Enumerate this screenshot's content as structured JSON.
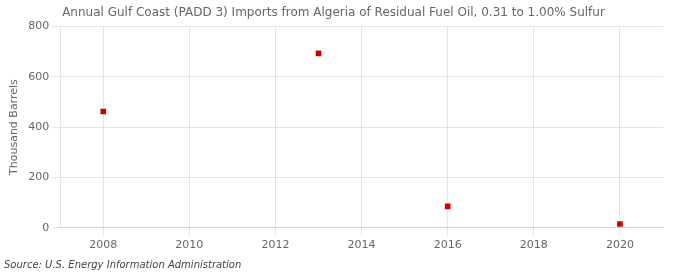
{
  "chart_data": {
    "type": "scatter",
    "title": "Annual Gulf Coast (PADD 3) Imports from Algeria of Residual Fuel Oil, 0.31 to 1.00% Sulfur",
    "y_label": "Thousand Barrels",
    "source": "Source: U.S. Energy Information Administration",
    "x": [
      2008,
      2013,
      2016,
      2020
    ],
    "values": [
      462,
      693,
      85,
      15
    ],
    "color": "#cc0000",
    "marker": "square",
    "xlim": [
      2007.0,
      2021.0
    ],
    "xticks": [
      2008,
      2010,
      2012,
      2014,
      2016,
      2018,
      2020
    ],
    "ylim": [
      0,
      800
    ],
    "yticks": [
      0,
      200,
      400,
      600,
      800
    ],
    "grid": true
  }
}
